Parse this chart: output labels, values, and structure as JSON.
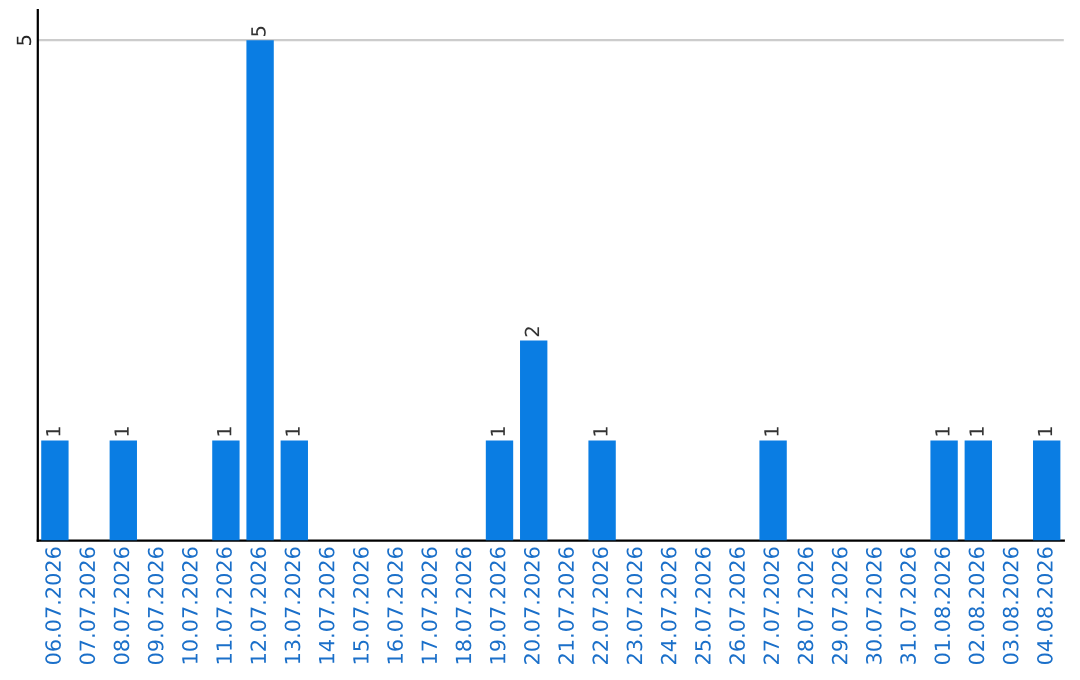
{
  "chart_data": {
    "type": "bar",
    "categories": [
      "06.07.2026",
      "07.07.2026",
      "08.07.2026",
      "09.07.2026",
      "10.07.2026",
      "11.07.2026",
      "12.07.2026",
      "13.07.2026",
      "14.07.2026",
      "15.07.2026",
      "16.07.2026",
      "17.07.2026",
      "18.07.2026",
      "19.07.2026",
      "20.07.2026",
      "21.07.2026",
      "22.07.2026",
      "23.07.2026",
      "24.07.2026",
      "25.07.2026",
      "26.07.2026",
      "27.07.2026",
      "28.07.2026",
      "29.07.2026",
      "30.07.2026",
      "31.07.2026",
      "01.08.2026",
      "02.08.2026",
      "03.08.2026",
      "04.08.2026"
    ],
    "values": [
      1,
      0,
      1,
      0,
      0,
      1,
      5,
      1,
      0,
      0,
      0,
      0,
      0,
      1,
      2,
      0,
      1,
      0,
      0,
      0,
      0,
      1,
      0,
      0,
      0,
      0,
      1,
      1,
      0,
      1
    ],
    "value_labels": [
      "1",
      null,
      "1",
      null,
      null,
      "1",
      "5",
      "1",
      null,
      null,
      null,
      null,
      null,
      "1",
      "2",
      null,
      "1",
      null,
      null,
      null,
      null,
      "1",
      null,
      null,
      null,
      null,
      "1",
      "1",
      null,
      "1"
    ],
    "color": "#0a7de3",
    "ylim": [
      0,
      5.3
    ],
    "yticks": [
      5
    ],
    "grid": "y"
  }
}
